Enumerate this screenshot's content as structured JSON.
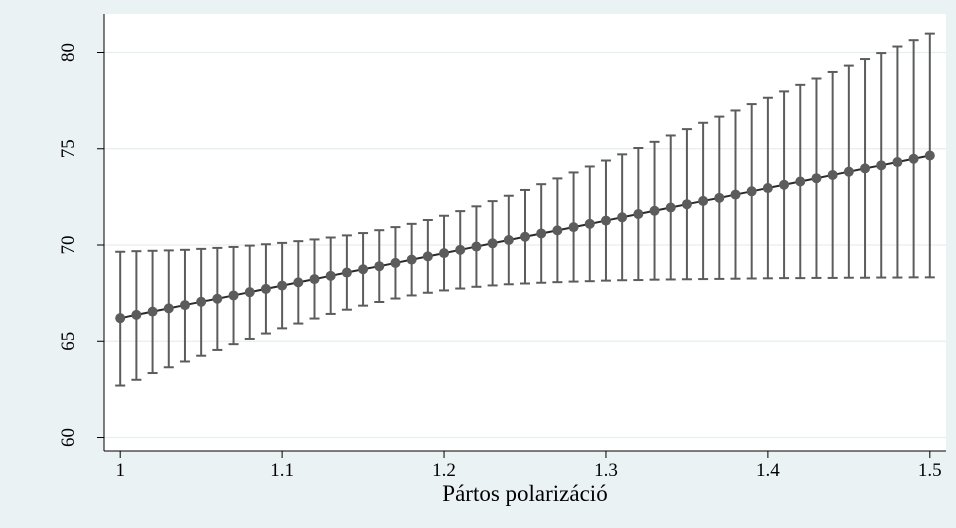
{
  "chart_data": {
    "type": "scatter",
    "title": "",
    "xlabel": "Pártos polarizáció",
    "ylabel": "",
    "xlim": [
      0.99,
      1.51
    ],
    "ylim": [
      59.3,
      82.0
    ],
    "x_ticks": [
      1,
      1.1,
      1.2,
      1.3,
      1.4,
      1.5
    ],
    "x_tick_labels": [
      "1",
      "1.1",
      "1.2",
      "1.3",
      "1.4",
      "1.5"
    ],
    "y_ticks": [
      60,
      65,
      70,
      75,
      80
    ],
    "y_tick_labels": [
      "60",
      "65",
      "70",
      "75",
      "80"
    ],
    "grid": true,
    "legend": "none",
    "colors": {
      "page_background": "#eaf2f3",
      "plot_background": "#ffffff",
      "grid": "#e6eef0",
      "marker": "#5c5c5c",
      "error_bar": "#5c5c5c",
      "line": "#2a2a2a"
    },
    "series": [
      {
        "x": [
          1.0,
          1.01,
          1.02,
          1.03,
          1.04,
          1.05,
          1.06,
          1.07,
          1.08,
          1.09,
          1.1,
          1.11,
          1.12,
          1.13,
          1.14,
          1.15,
          1.16,
          1.17,
          1.18,
          1.19,
          1.2,
          1.21,
          1.22,
          1.23,
          1.24,
          1.25,
          1.26,
          1.27,
          1.28,
          1.29,
          1.3,
          1.31,
          1.32,
          1.33,
          1.34,
          1.35,
          1.36,
          1.37,
          1.38,
          1.39,
          1.4,
          1.41,
          1.42,
          1.43,
          1.44,
          1.45,
          1.46,
          1.47,
          1.48,
          1.49,
          1.5
        ],
        "y": [
          66.2,
          66.37,
          66.54,
          66.71,
          66.88,
          67.05,
          67.21,
          67.38,
          67.55,
          67.72,
          67.89,
          68.06,
          68.23,
          68.4,
          68.57,
          68.74,
          68.9,
          69.07,
          69.24,
          69.41,
          69.58,
          69.75,
          69.92,
          70.09,
          70.26,
          70.43,
          70.6,
          70.76,
          70.93,
          71.1,
          71.27,
          71.44,
          71.61,
          71.78,
          71.95,
          72.12,
          72.29,
          72.45,
          72.62,
          72.79,
          72.96,
          73.13,
          73.3,
          73.47,
          73.64,
          73.81,
          73.98,
          74.14,
          74.31,
          74.48,
          74.65
        ],
        "lower": [
          62.7,
          63.0,
          63.35,
          63.65,
          63.95,
          64.25,
          64.55,
          64.85,
          65.12,
          65.4,
          65.67,
          65.92,
          66.18,
          66.42,
          66.64,
          66.85,
          67.04,
          67.22,
          67.38,
          67.52,
          67.64,
          67.74,
          67.83,
          67.9,
          67.96,
          68.0,
          68.04,
          68.07,
          68.1,
          68.12,
          68.15,
          68.17,
          68.18,
          68.2,
          68.21,
          68.22,
          68.23,
          68.24,
          68.25,
          68.26,
          68.27,
          68.28,
          68.28,
          68.29,
          68.29,
          68.3,
          68.3,
          68.31,
          68.31,
          68.32,
          68.32
        ],
        "upper": [
          69.65,
          69.68,
          69.7,
          69.72,
          69.75,
          69.8,
          69.85,
          69.9,
          69.97,
          70.04,
          70.11,
          70.2,
          70.29,
          70.39,
          70.5,
          70.62,
          70.77,
          70.93,
          71.1,
          71.3,
          71.52,
          71.76,
          72.01,
          72.28,
          72.56,
          72.86,
          73.16,
          73.46,
          73.77,
          74.08,
          74.39,
          74.71,
          75.04,
          75.36,
          75.69,
          76.02,
          76.35,
          76.67,
          76.99,
          77.32,
          77.65,
          77.98,
          78.32,
          78.65,
          78.99,
          79.32,
          79.66,
          79.97,
          80.31,
          80.64,
          80.98
        ]
      }
    ]
  }
}
